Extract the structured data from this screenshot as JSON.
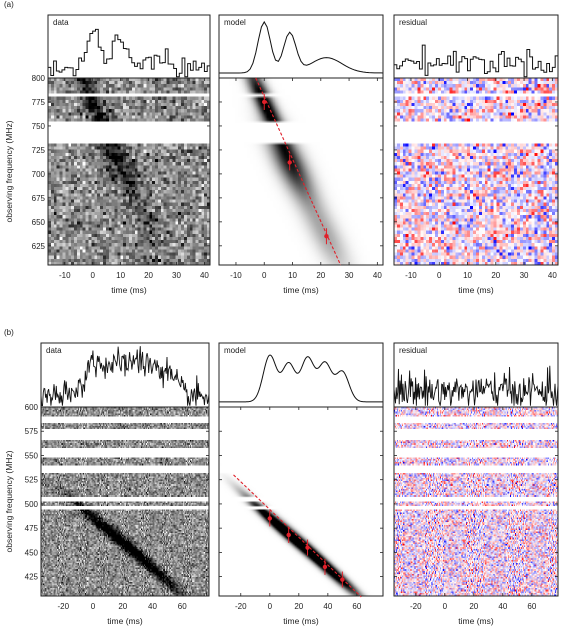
{
  "figure": {
    "panel_labels": [
      "(a)",
      "(b)"
    ]
  },
  "chart_data": [
    {
      "type": "heatmap",
      "panel": "(a)",
      "titles": [
        "data",
        "model",
        "residual"
      ],
      "xlabel": "time (ms)",
      "ylabel": "observing frequency (MHz)",
      "xticks": [
        -10,
        0,
        10,
        20,
        30,
        40
      ],
      "yticks": [
        625,
        650,
        675,
        700,
        725,
        750,
        775,
        800
      ],
      "xlim": [
        -16,
        42
      ],
      "ylim": [
        605,
        800
      ],
      "masked_bands_mhz": [
        [
          792,
          794
        ],
        [
          781,
          783
        ],
        [
          731,
          756
        ]
      ],
      "burst_components": [
        {
          "time_ms": 0,
          "freq_mhz": 775
        },
        {
          "time_ms": 9,
          "freq_mhz": 712
        },
        {
          "time_ms": 22,
          "freq_mhz": 635
        }
      ],
      "dm_line": {
        "start": [
          -3,
          800
        ],
        "end": [
          27,
          605
        ]
      },
      "profile_model": {
        "peaks_ms": [
          0,
          9,
          22
        ],
        "amplitudes": [
          1.0,
          0.78,
          0.3
        ]
      }
    },
    {
      "type": "heatmap",
      "panel": "(b)",
      "titles": [
        "data",
        "model",
        "residual"
      ],
      "xlabel": "time (ms)",
      "ylabel": "observing frequency (MHz)",
      "xticks": [
        -20,
        0,
        20,
        40,
        60
      ],
      "yticks": [
        425,
        450,
        475,
        500,
        525,
        550,
        575,
        600
      ],
      "xlim": [
        -35,
        78
      ],
      "ylim": [
        405,
        600
      ],
      "masked_bands_mhz": [
        [
          584,
          590
        ],
        [
          566,
          578
        ],
        [
          548,
          558
        ],
        [
          531,
          540
        ],
        [
          502,
          508
        ],
        [
          494,
          498
        ]
      ],
      "burst_components": [
        {
          "time_ms": 0,
          "freq_mhz": 485
        },
        {
          "time_ms": 13,
          "freq_mhz": 468
        },
        {
          "time_ms": 26,
          "freq_mhz": 455
        },
        {
          "time_ms": 38,
          "freq_mhz": 435
        },
        {
          "time_ms": 50,
          "freq_mhz": 422
        }
      ],
      "dm_line": {
        "start": [
          -25,
          530
        ],
        "end": [
          63,
          404
        ]
      },
      "profile_model": {
        "peaks_ms": [
          0,
          13,
          26,
          38,
          50
        ],
        "amplitudes": [
          0.85,
          0.7,
          0.8,
          0.7,
          0.55
        ]
      }
    }
  ]
}
